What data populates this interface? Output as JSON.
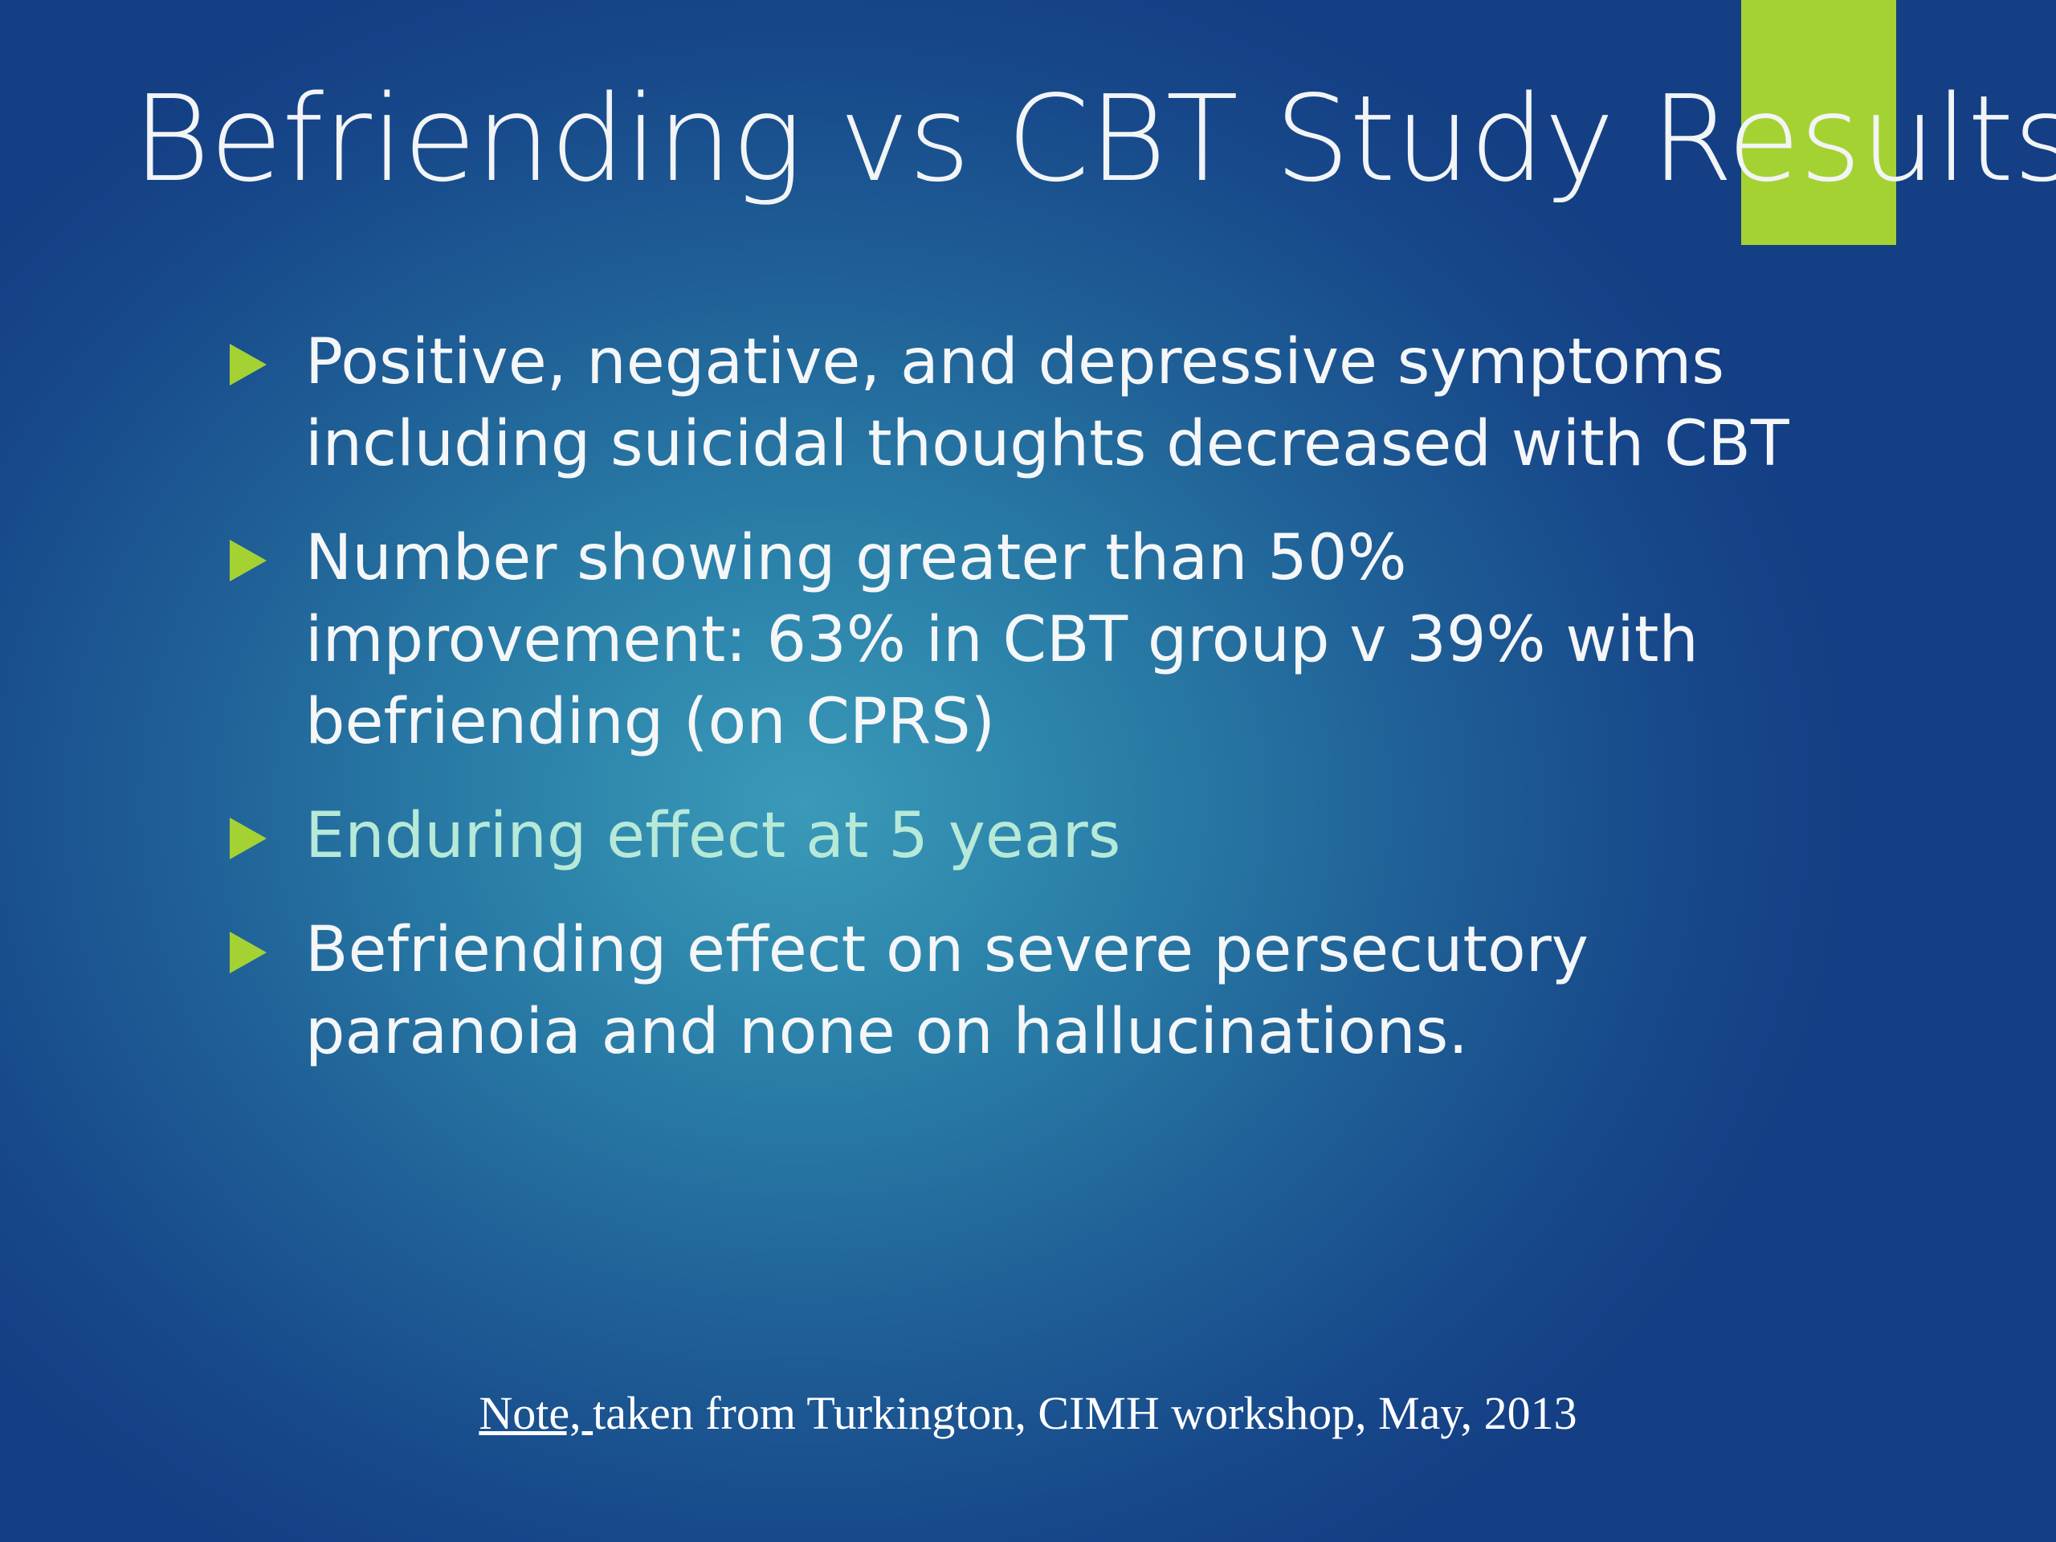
{
  "slide": {
    "title": "Befriending vs CBT Study Results",
    "bullets": [
      {
        "text": "Positive, negative, and depressive symptoms including suicidal thoughts decreased with CBT"
      },
      {
        "text": "Number showing greater than 50% improvement: 63% in CBT group v 39% with befriending (on CPRS)"
      },
      {
        "text": "Enduring effect at 5 years"
      },
      {
        "text": "Befriending effect on severe persecutory paranoia and none on hallucinations."
      }
    ],
    "footnote": {
      "label": "Note, ",
      "text": "taken from Turkington, CIMH workshop, May, 2013"
    }
  },
  "colors": {
    "accent": "#a4d233",
    "background_dark": "#143f84",
    "background_light": "#3a9ab8",
    "highlight_text": "#b7e9d8"
  },
  "icons": {
    "bullet": "triangle-right-icon"
  }
}
